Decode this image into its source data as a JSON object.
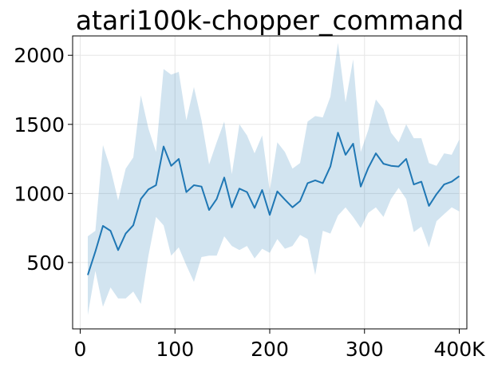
{
  "chart_data": {
    "type": "line",
    "title": "atari100k-chopper_command",
    "xlabel": "",
    "ylabel": "",
    "xlim": [
      -8000,
      408000
    ],
    "ylim": [
      20,
      2140
    ],
    "grid": true,
    "x_ticks": [
      0,
      100000,
      200000,
      300000,
      400000
    ],
    "x_tick_labels": [
      "0",
      "100",
      "200",
      "300",
      "400K"
    ],
    "y_ticks": [
      500,
      1000,
      1500,
      2000
    ],
    "y_tick_labels": [
      "500",
      "1000",
      "1500",
      "2000"
    ],
    "colors": {
      "line": "#1f77b4",
      "band": "#1f77b4",
      "grid": "#e6e6e6",
      "axes": "#000000"
    },
    "band_opacity": 0.2,
    "series": [
      {
        "x": [
          8000,
          16000,
          24000,
          32000,
          40000,
          48000,
          56000,
          64000,
          72000,
          80000,
          88000,
          96000,
          104000,
          112000,
          120000,
          128000,
          136000,
          144000,
          152000,
          160000,
          168000,
          176000,
          184000,
          192000,
          200000,
          208000,
          216000,
          224000,
          232000,
          240000,
          248000,
          256000,
          264000,
          272000,
          280000,
          288000,
          296000,
          304000,
          312000,
          320000,
          328000,
          336000,
          344000,
          352000,
          360000,
          368000,
          376000,
          384000,
          392000,
          400000
        ],
        "y": [
          410,
          580,
          765,
          730,
          590,
          710,
          770,
          960,
          1030,
          1060,
          1340,
          1200,
          1250,
          1010,
          1060,
          1050,
          880,
          960,
          1115,
          900,
          1035,
          1010,
          895,
          1025,
          845,
          1015,
          955,
          900,
          945,
          1075,
          1095,
          1075,
          1195,
          1440,
          1280,
          1360,
          1050,
          1185,
          1290,
          1215,
          1200,
          1195,
          1250,
          1065,
          1085,
          910,
          995,
          1065,
          1085,
          1125
        ],
        "lower": [
          120,
          440,
          180,
          320,
          240,
          240,
          290,
          200,
          550,
          830,
          770,
          550,
          610,
          480,
          360,
          540,
          550,
          550,
          690,
          620,
          590,
          620,
          530,
          600,
          570,
          670,
          600,
          620,
          700,
          670,
          410,
          730,
          710,
          840,
          900,
          830,
          750,
          860,
          900,
          830,
          960,
          1040,
          960,
          720,
          760,
          610,
          800,
          850,
          900,
          870
        ],
        "upper": [
          690,
          730,
          1350,
          1180,
          950,
          1180,
          1260,
          1710,
          1470,
          1300,
          1900,
          1860,
          1880,
          1530,
          1770,
          1530,
          1210,
          1370,
          1520,
          1140,
          1500,
          1420,
          1290,
          1420,
          1020,
          1370,
          1300,
          1180,
          1220,
          1520,
          1560,
          1550,
          1700,
          2090,
          1660,
          1970,
          1300,
          1460,
          1680,
          1610,
          1440,
          1370,
          1500,
          1400,
          1400,
          1220,
          1200,
          1290,
          1280,
          1390
        ]
      }
    ]
  }
}
